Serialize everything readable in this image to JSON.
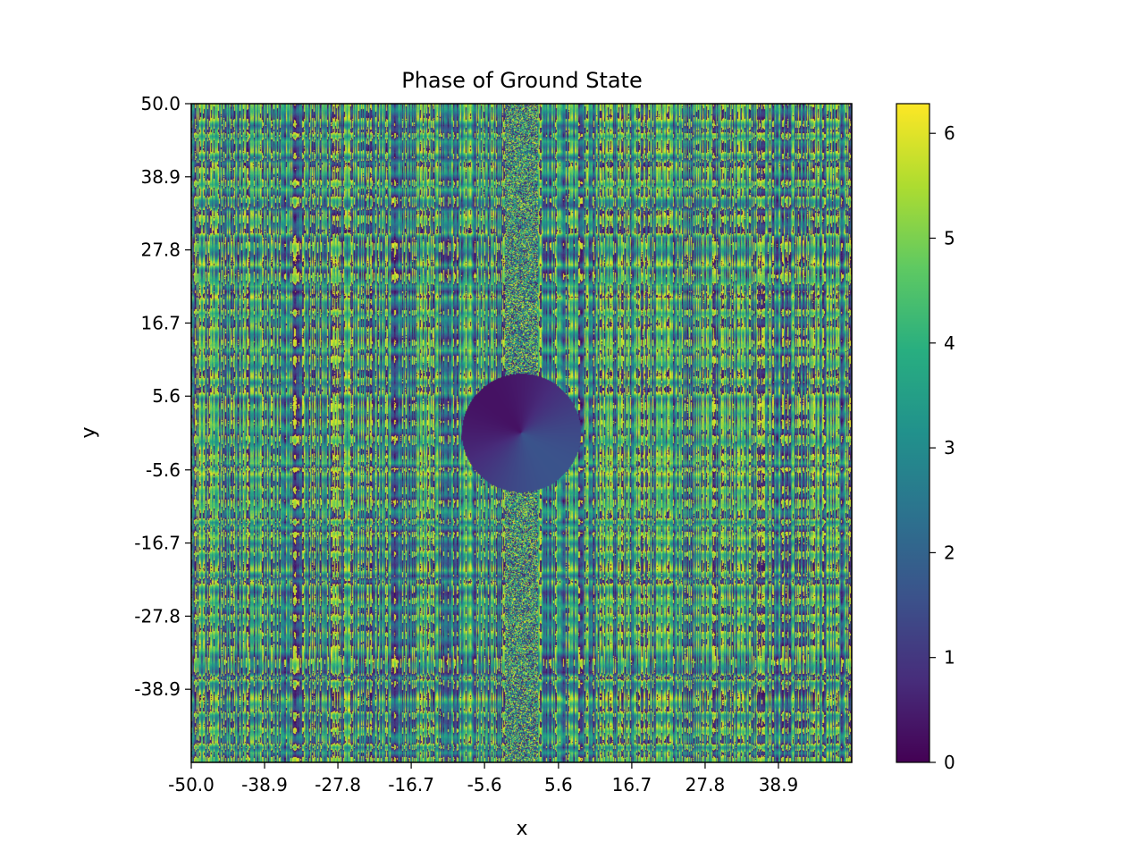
{
  "chart_data": {
    "type": "heatmap",
    "title": "Phase of Ground State",
    "xlabel": "x",
    "ylabel": "y",
    "xlim": [
      -50.0,
      50.0
    ],
    "ylim": [
      -50.0,
      50.0
    ],
    "x_ticks": [
      -50.0,
      -38.9,
      -27.8,
      -16.7,
      -5.6,
      5.6,
      16.7,
      27.8,
      38.9
    ],
    "x_tick_labels": [
      "-50.0",
      "-38.9",
      "-27.8",
      "-16.7",
      "-5.6",
      "5.6",
      "16.7",
      "27.8",
      "38.9"
    ],
    "y_ticks": [
      50.0,
      38.9,
      27.8,
      16.7,
      5.6,
      -5.6,
      -16.7,
      -27.8,
      -38.9
    ],
    "y_tick_labels": [
      "50.0",
      "38.9",
      "27.8",
      "16.7",
      "5.6",
      "-5.6",
      "-16.7",
      "-27.8",
      "-38.9"
    ],
    "colormap": "viridis",
    "colorbar": {
      "range": [
        0,
        6.283
      ],
      "ticks": [
        0,
        1,
        2,
        3,
        4,
        5,
        6
      ],
      "tick_labels": [
        "0",
        "1",
        "2",
        "3",
        "4",
        "5",
        "6"
      ]
    },
    "features": {
      "background": "random phase noise in [0, 2π], with horizontal banding",
      "vortex_disk_center": [
        0.0,
        0.0
      ],
      "vortex_disk_radius": 9.0,
      "vortex_disk_phase_range": [
        0.3,
        1.6
      ],
      "central_noisy_strip_x_range": [
        -2.5,
        2.5
      ]
    },
    "grid": false
  }
}
